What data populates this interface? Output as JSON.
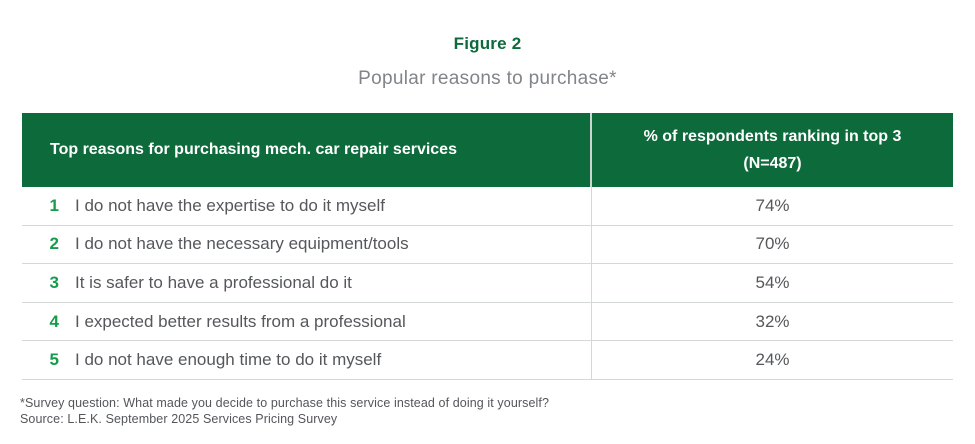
{
  "figure": {
    "title": "Figure 2",
    "subtitle": "Popular reasons to purchase*"
  },
  "table": {
    "header": {
      "reasons": "Top reasons for purchasing mech. car repair services",
      "pct_line1": "% of respondents ranking in top 3",
      "pct_line2": "(N=487)"
    },
    "rows": [
      {
        "rank": "1",
        "reason": "I do not have the expertise to do it myself",
        "pct": "74%"
      },
      {
        "rank": "2",
        "reason": "I do not have the necessary equipment/tools",
        "pct": "70%"
      },
      {
        "rank": "3",
        "reason": "It is safer to have a professional do it",
        "pct": "54%"
      },
      {
        "rank": "4",
        "reason": "I expected better results from a professional",
        "pct": "32%"
      },
      {
        "rank": "5",
        "reason": "I do not have enough time to do it myself",
        "pct": "24%"
      }
    ]
  },
  "footnotes": {
    "survey_question": "*Survey question: What made you decide to purchase this service instead of doing it yourself?",
    "source": "Source: L.E.K. September 2025 Services Pricing Survey"
  },
  "colors": {
    "header_green": "#0d6a3b",
    "rank_green": "#159c4b",
    "body_text_gray": "#55575b",
    "subtitle_gray": "#818589",
    "divider_gray": "#d4d8d9",
    "header_text": "#ffffff"
  },
  "chart_data": {
    "type": "table",
    "title": "Figure 2",
    "subtitle": "Popular reasons to purchase*",
    "columns": [
      "Top reasons for purchasing mech. car repair services",
      "% of respondents ranking in top 3 (N=487)"
    ],
    "categories": [
      "I do not have the expertise to do it myself",
      "I do not have the necessary equipment/tools",
      "It is safer to have a professional do it",
      "I expected better results from a professional",
      "I do not have enough time to do it myself"
    ],
    "values": [
      74,
      70,
      54,
      32,
      24
    ],
    "value_unit": "% of respondents ranking in top 3",
    "sample_size": 487,
    "footnote": "*Survey question: What made you decide to purchase this service instead of doing it yourself?",
    "source": "Source: L.E.K. September 2025 Services Pricing Survey"
  }
}
